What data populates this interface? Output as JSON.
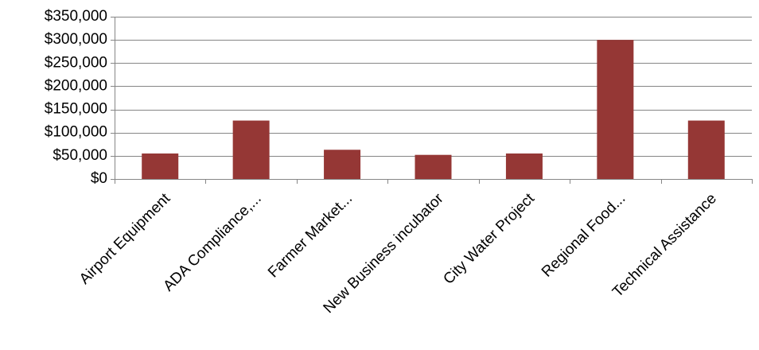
{
  "chart_data": {
    "type": "bar",
    "categories": [
      "Airport Equipment",
      "ADA Compliance,...",
      "Farmer Market...",
      "New Business incubator",
      "City Water Project",
      "Regional Food...",
      "Technical Assistance"
    ],
    "values": [
      55000,
      126000,
      63000,
      52000,
      55000,
      300000,
      126000
    ],
    "ylim": [
      0,
      350000
    ],
    "yticks": [
      0,
      50000,
      100000,
      150000,
      200000,
      250000,
      300000,
      350000
    ],
    "ytick_labels": [
      "$0",
      "$50,000",
      "$100,000",
      "$150,000",
      "$200,000",
      "$250,000",
      "$300,000",
      "$350,000"
    ],
    "grid": true,
    "bar_color": "#953735",
    "grid_color": "#868686"
  }
}
